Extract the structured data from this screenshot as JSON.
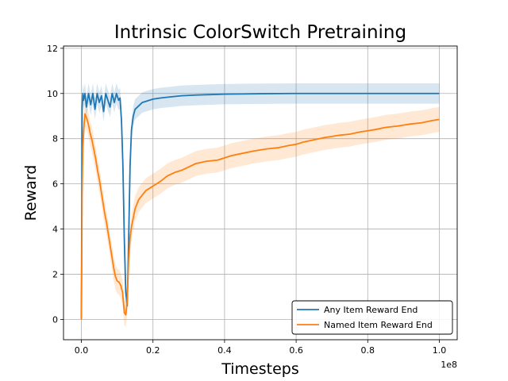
{
  "chart_data": {
    "type": "line",
    "title": "Intrinsic ColorSwitch Pretraining",
    "xlabel": "Timesteps",
    "ylabel": "Reward",
    "x_multiplier_label": "1e8",
    "xlim": [
      -0.05,
      1.05
    ],
    "ylim": [
      -0.9,
      12.1
    ],
    "x_ticks": [
      0.0,
      0.2,
      0.4,
      0.6,
      0.8,
      1.0
    ],
    "x_tick_labels": [
      "0.0",
      "0.2",
      "0.4",
      "0.6",
      "0.8",
      "1.0"
    ],
    "y_ticks": [
      0,
      2,
      4,
      6,
      8,
      10,
      12
    ],
    "y_tick_labels": [
      "0",
      "2",
      "4",
      "6",
      "8",
      "10",
      "12"
    ],
    "grid": true,
    "legend_position": "lower-right",
    "series": [
      {
        "name": "Any Item Reward End",
        "color": "#1f77b4",
        "x": [
          0.0,
          0.002,
          0.004,
          0.006,
          0.01,
          0.014,
          0.02,
          0.026,
          0.032,
          0.038,
          0.044,
          0.05,
          0.056,
          0.062,
          0.068,
          0.074,
          0.08,
          0.086,
          0.092,
          0.098,
          0.104,
          0.108,
          0.112,
          0.116,
          0.12,
          0.124,
          0.128,
          0.132,
          0.136,
          0.14,
          0.145,
          0.15,
          0.16,
          0.17,
          0.18,
          0.2,
          0.22,
          0.25,
          0.28,
          0.32,
          0.36,
          0.4,
          0.45,
          0.5,
          0.6,
          0.7,
          0.8,
          0.9,
          1.0
        ],
        "y": [
          0.0,
          9.4,
          10.0,
          9.7,
          10.0,
          9.4,
          10.0,
          9.5,
          10.0,
          9.3,
          10.0,
          9.6,
          9.9,
          9.2,
          10.0,
          9.7,
          9.4,
          10.0,
          9.6,
          10.0,
          9.7,
          9.8,
          8.8,
          6.8,
          3.5,
          1.2,
          0.6,
          3.5,
          6.8,
          8.4,
          9.0,
          9.3,
          9.45,
          9.6,
          9.65,
          9.75,
          9.8,
          9.85,
          9.9,
          9.93,
          9.95,
          9.97,
          9.98,
          9.99,
          10.0,
          10.0,
          10.0,
          10.0,
          10.0
        ]
      },
      {
        "name": "Named Item Reward End",
        "color": "#ff7f0e",
        "x": [
          0.0,
          0.002,
          0.004,
          0.007,
          0.01,
          0.015,
          0.02,
          0.025,
          0.03,
          0.035,
          0.04,
          0.045,
          0.05,
          0.055,
          0.06,
          0.065,
          0.07,
          0.075,
          0.08,
          0.085,
          0.09,
          0.095,
          0.1,
          0.105,
          0.11,
          0.115,
          0.12,
          0.124,
          0.128,
          0.132,
          0.136,
          0.14,
          0.145,
          0.15,
          0.155,
          0.16,
          0.17,
          0.18,
          0.19,
          0.2,
          0.22,
          0.24,
          0.26,
          0.28,
          0.3,
          0.32,
          0.35,
          0.38,
          0.4,
          0.42,
          0.45,
          0.48,
          0.5,
          0.52,
          0.55,
          0.58,
          0.6,
          0.62,
          0.65,
          0.68,
          0.7,
          0.72,
          0.75,
          0.78,
          0.8,
          0.82,
          0.85,
          0.88,
          0.9,
          0.92,
          0.95,
          0.98,
          1.0
        ],
        "y": [
          0.0,
          5.5,
          7.6,
          8.5,
          9.1,
          8.9,
          8.6,
          8.2,
          7.9,
          7.5,
          7.1,
          6.6,
          6.2,
          5.7,
          5.2,
          4.7,
          4.3,
          3.8,
          3.3,
          2.8,
          2.3,
          1.9,
          1.7,
          1.65,
          1.5,
          1.2,
          0.3,
          0.2,
          0.8,
          2.6,
          3.6,
          4.1,
          4.5,
          4.9,
          5.1,
          5.3,
          5.5,
          5.7,
          5.8,
          5.9,
          6.1,
          6.35,
          6.5,
          6.6,
          6.75,
          6.9,
          7.0,
          7.05,
          7.15,
          7.25,
          7.35,
          7.45,
          7.5,
          7.55,
          7.6,
          7.7,
          7.75,
          7.85,
          7.95,
          8.05,
          8.1,
          8.15,
          8.2,
          8.3,
          8.35,
          8.4,
          8.5,
          8.55,
          8.6,
          8.65,
          8.7,
          8.8,
          8.85
        ]
      }
    ]
  }
}
